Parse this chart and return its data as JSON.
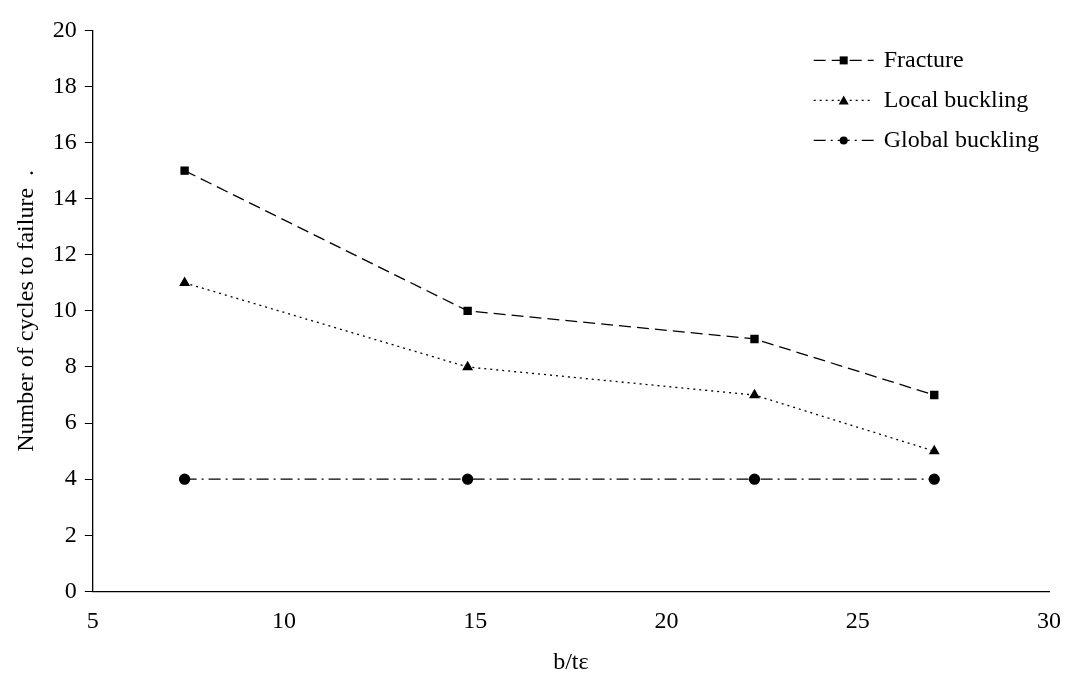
{
  "chart_data": {
    "type": "line",
    "xlabel": "b/tε",
    "ylabel": "Number of cycles to failure  .",
    "x": [
      7.4,
      14.8,
      22.3,
      27.0
    ],
    "series": [
      {
        "name": "Fracture",
        "color": "#000000",
        "values": [
          15,
          10,
          9,
          7
        ],
        "marker": "square",
        "line_style": "dashed"
      },
      {
        "name": "Local buckling",
        "color": "#000000",
        "values": [
          11,
          8,
          7,
          5
        ],
        "marker": "triangle",
        "line_style": "dotted"
      },
      {
        "name": "Global buckling",
        "color": "#000000",
        "values": [
          4,
          4,
          4,
          4
        ],
        "marker": "circle",
        "line_style": "dashdot"
      }
    ],
    "xlim": [
      5,
      30
    ],
    "xticks": [
      5,
      10,
      15,
      20,
      25,
      30
    ],
    "ylim": [
      0,
      20
    ],
    "yticks": [
      0,
      2,
      4,
      6,
      8,
      10,
      12,
      14,
      16,
      18,
      20
    ],
    "grid": false,
    "legend": "top right"
  }
}
